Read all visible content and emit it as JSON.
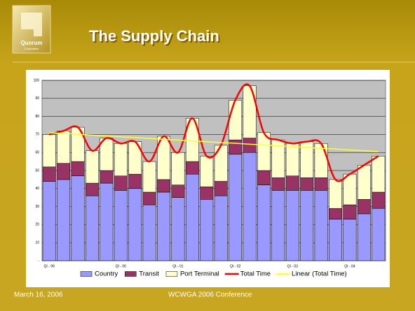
{
  "logo": {
    "name": "Quorum",
    "subtitle": "Corporation"
  },
  "chart_data": {
    "type": "stacked-bar-line",
    "title": "The Supply Chain",
    "categories": [
      "QI - 99",
      null,
      null,
      null,
      null,
      "QI - 00",
      null,
      null,
      null,
      "QI - 01",
      null,
      null,
      null,
      "QI - 02",
      null,
      null,
      null,
      "QI - 03",
      null,
      null,
      null,
      "QI - 04",
      null,
      null
    ],
    "series": [
      {
        "name": "Country",
        "kind": "bar",
        "color": "#9999ff",
        "values": [
          44,
          45,
          47,
          36,
          43,
          39,
          40,
          31,
          38,
          35,
          48,
          34,
          36,
          59,
          60,
          42,
          39,
          39,
          39,
          39,
          23,
          23,
          26,
          29
        ]
      },
      {
        "name": "Transit",
        "kind": "bar",
        "color": "#993366",
        "values": [
          8,
          9,
          8,
          7,
          7,
          8,
          8,
          7,
          7,
          7,
          7,
          7,
          8,
          8,
          8,
          8,
          7,
          8,
          7,
          7,
          6,
          8,
          8,
          9
        ]
      },
      {
        "name": "Port Terminal",
        "kind": "bar",
        "color": "#ffffcc",
        "values": [
          18,
          18,
          19,
          18,
          18,
          18,
          18,
          17,
          24,
          18,
          24,
          17,
          20,
          22,
          29,
          21,
          21,
          18,
          20,
          19,
          16,
          17,
          19,
          20
        ]
      },
      {
        "name": "Total Time",
        "kind": "line",
        "color": "#ff0000",
        "values": [
          70,
          72,
          74,
          61,
          68,
          65,
          66,
          55,
          69,
          60,
          79,
          58,
          64,
          89,
          97,
          71,
          67,
          65,
          66,
          65,
          45,
          48,
          53,
          58
        ]
      },
      {
        "name": "Linear (Total Time)",
        "kind": "line",
        "color": "#ffff33",
        "values": [
          71,
          70.5,
          70.1,
          69.6,
          69.2,
          68.7,
          68.3,
          67.8,
          67.3,
          66.9,
          66.4,
          66,
          65.5,
          65.1,
          64.6,
          64.2,
          63.7,
          63.2,
          62.8,
          62.3,
          61.9,
          61.4,
          61,
          60.5
        ]
      }
    ],
    "ylim": [
      0,
      100
    ],
    "yticks": [
      {
        "value": 0,
        "label": "-"
      },
      10,
      20,
      30,
      40,
      50,
      60,
      70,
      80,
      90,
      100
    ],
    "grid": true,
    "legend": "bottom"
  },
  "footer": {
    "date": "March 16, 2006",
    "event": "WCWGA 2006 Conference"
  }
}
